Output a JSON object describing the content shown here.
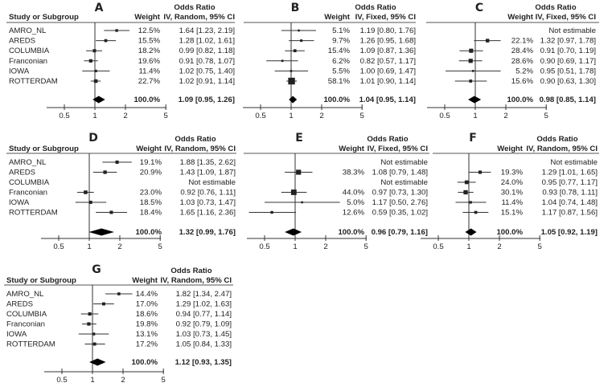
{
  "chart_data": {
    "type": "forest",
    "x_scale": "log",
    "x_ticks": [
      "0.5",
      "1",
      "2",
      "5"
    ],
    "study_header": "Study or Subgroup",
    "weight_header": "Weight",
    "or_header": "Odds Ratio",
    "studies": [
      "AMRO_NL",
      "AREDS",
      "COLUMBIA",
      "Franconian",
      "IOWA",
      "ROTTERDAM"
    ],
    "panels": [
      {
        "letter": "A",
        "method": "IV, Random, 95% CI",
        "show_studies": true,
        "rows": [
          {
            "weight": "12.5%",
            "est": "1.64 [1.23, 2.19]"
          },
          {
            "weight": "15.5%",
            "est": "1.28 [1.02, 1.61]"
          },
          {
            "weight": "18.2%",
            "est": "0.99 [0.82, 1.18]"
          },
          {
            "weight": "19.6%",
            "est": "0.91 [0.78, 1.07]"
          },
          {
            "weight": "11.4%",
            "est": "1.02 [0.75, 1.40]"
          },
          {
            "weight": "22.7%",
            "est": "1.02 [0.91, 1.14]"
          }
        ],
        "total": {
          "weight": "100.0%",
          "est": "1.09 [0.95, 1.26]"
        }
      },
      {
        "letter": "B",
        "method": "IV, Fixed, 95% CI",
        "show_studies": false,
        "rows": [
          {
            "weight": "5.1%",
            "est": "1.19 [0.80, 1.76]"
          },
          {
            "weight": "9.7%",
            "est": "1.26 [0.95, 1.68]"
          },
          {
            "weight": "15.4%",
            "est": "1.09 [0.87, 1.36]"
          },
          {
            "weight": "6.2%",
            "est": "0.82 [0.57, 1.17]"
          },
          {
            "weight": "5.5%",
            "est": "1.00 [0.69, 1.47]"
          },
          {
            "weight": "58.1%",
            "est": "1.01 [0.90, 1.14]"
          }
        ],
        "total": {
          "weight": "100.0%",
          "est": "1.04 [0.95, 1.14]"
        }
      },
      {
        "letter": "C",
        "method": "IV, Fixed, 95% CI",
        "show_studies": false,
        "rows": [
          {
            "weight": "",
            "est": "Not estimable"
          },
          {
            "weight": "22.1%",
            "est": "1.32 [0.97, 1.78]"
          },
          {
            "weight": "28.4%",
            "est": "0.91 [0.70, 1.19]"
          },
          {
            "weight": "28.6%",
            "est": "0.90 [0.69, 1.17]"
          },
          {
            "weight": "5.2%",
            "est": "0.95 [0.51, 1.78]"
          },
          {
            "weight": "15.6%",
            "est": "0.90 [0.63, 1.30]"
          }
        ],
        "total": {
          "weight": "100.0%",
          "est": "0.98 [0.85, 1.14]"
        }
      },
      {
        "letter": "D",
        "method": "IV, Random, 95% CI",
        "show_studies": true,
        "rows": [
          {
            "weight": "19.1%",
            "est": "1.88 [1.35, 2.62]"
          },
          {
            "weight": "20.9%",
            "est": "1.43 [1.09, 1.87]"
          },
          {
            "weight": "",
            "est": "Not estimable"
          },
          {
            "weight": "23.0%",
            "est": "0.92 [0.76, 1.11]"
          },
          {
            "weight": "18.5%",
            "est": "1.03 [0.73, 1.47]"
          },
          {
            "weight": "18.4%",
            "est": "1.65 [1.16, 2.36]"
          }
        ],
        "total": {
          "weight": "100.0%",
          "est": "1.32 [0.99, 1.76]"
        }
      },
      {
        "letter": "E",
        "method": "IV, Fixed, 95% CI",
        "show_studies": false,
        "rows": [
          {
            "weight": "",
            "est": "Not estimable"
          },
          {
            "weight": "38.3%",
            "est": "1.08 [0.79, 1.48]"
          },
          {
            "weight": "",
            "est": "Not estimable"
          },
          {
            "weight": "44.0%",
            "est": "0.97 [0.73, 1.30]"
          },
          {
            "weight": "5.0%",
            "est": "1.17 [0.50, 2.76]"
          },
          {
            "weight": "12.6%",
            "est": "0.59 [0.35, 1.02]"
          }
        ],
        "total": {
          "weight": "100.0%",
          "est": "0.96 [0.79, 1.16]"
        }
      },
      {
        "letter": "F",
        "method": "IV, Random, 95% CI",
        "show_studies": false,
        "rows": [
          {
            "weight": "",
            "est": "Not estimable"
          },
          {
            "weight": "19.3%",
            "est": "1.29 [1.01, 1.65]"
          },
          {
            "weight": "24.0%",
            "est": "0.95 [0.77, 1.17]"
          },
          {
            "weight": "30.1%",
            "est": "0.93 [0.78, 1.11]"
          },
          {
            "weight": "11.4%",
            "est": "1.04 [0.74, 1.48]"
          },
          {
            "weight": "15.1%",
            "est": "1.17 [0.87, 1.56]"
          }
        ],
        "total": {
          "weight": "100.0%",
          "est": "1.05 [0.92, 1.19]"
        }
      },
      {
        "letter": "G",
        "method": "IV, Random, 95% CI",
        "show_studies": true,
        "rows": [
          {
            "weight": "14.4%",
            "est": "1.82 [1.34, 2.47]"
          },
          {
            "weight": "17.0%",
            "est": "1.29 [1.02, 1.63]"
          },
          {
            "weight": "18.6%",
            "est": "0.94 [0.77, 1.14]"
          },
          {
            "weight": "19.8%",
            "est": "0.92 [0.79, 1.09]"
          },
          {
            "weight": "13.1%",
            "est": "1.03 [0.73, 1.45]"
          },
          {
            "weight": "17.2%",
            "est": "1.05 [0.84, 1.33]"
          }
        ],
        "total": {
          "weight": "100.0%",
          "est": "1.12 [0.93, 1.35]"
        }
      }
    ]
  }
}
